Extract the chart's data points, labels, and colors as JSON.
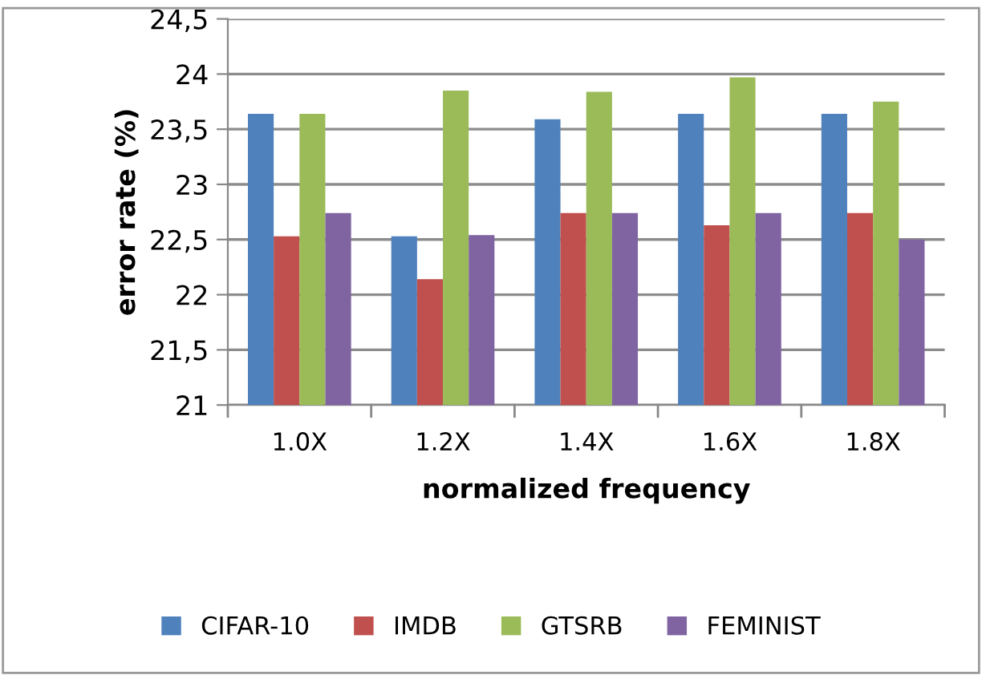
{
  "chart_data": {
    "type": "bar",
    "xlabel": "normalized frequency",
    "ylabel": "error rate (%)",
    "categories": [
      "1.0X",
      "1.2X",
      "1.4X",
      "1.6X",
      "1.8X"
    ],
    "series": [
      {
        "name": "CIFAR-10",
        "color": "#4f81bd",
        "values": [
          23.64,
          22.53,
          23.59,
          23.64,
          23.64
        ]
      },
      {
        "name": "IMDB",
        "color": "#c0504d",
        "values": [
          22.53,
          22.14,
          22.74,
          22.63,
          22.74
        ]
      },
      {
        "name": "GTSRB",
        "color": "#9bbb59",
        "values": [
          23.64,
          23.85,
          23.84,
          23.97,
          23.75
        ]
      },
      {
        "name": "FEMINIST",
        "color": "#8064a2",
        "values": [
          22.74,
          22.54,
          22.74,
          22.74,
          22.5
        ]
      }
    ],
    "ylim": [
      21,
      24.5
    ],
    "yticks": [
      21,
      {
        "value": 21.5,
        "label": "21,5"
      },
      22,
      {
        "value": 22.5,
        "label": "22,5"
      },
      23,
      {
        "value": 23.5,
        "label": "23,5"
      },
      24,
      {
        "value": 24.5,
        "label": "24,5"
      }
    ],
    "grid": "y",
    "legend": "bottom"
  }
}
